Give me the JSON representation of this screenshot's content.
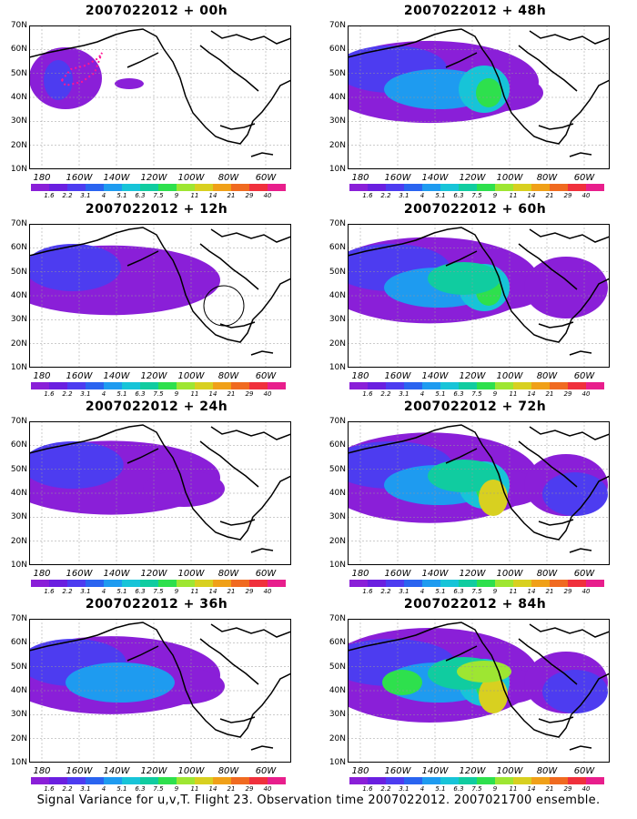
{
  "panels": [
    {
      "title": "2007022012 + 00h",
      "intensity": 0
    },
    {
      "title": "2007022012 + 48h",
      "intensity": 4
    },
    {
      "title": "2007022012 + 12h",
      "intensity": 1
    },
    {
      "title": "2007022012 + 60h",
      "intensity": 5
    },
    {
      "title": "2007022012 + 24h",
      "intensity": 2
    },
    {
      "title": "2007022012 + 72h",
      "intensity": 6
    },
    {
      "title": "2007022012 + 36h",
      "intensity": 3
    },
    {
      "title": "2007022012 + 84h",
      "intensity": 7
    }
  ],
  "lat_labels": [
    "70N",
    "60N",
    "50N",
    "40N",
    "30N",
    "20N",
    "10N"
  ],
  "lon_labels": [
    "180",
    "160W",
    "140W",
    "120W",
    "100W",
    "80W",
    "60W"
  ],
  "colorbar": {
    "labels": [
      "1.6",
      "2.2",
      "3.1",
      "4",
      "5.1",
      "6.3",
      "7.5",
      "9",
      "11",
      "14",
      "21",
      "29",
      "40"
    ],
    "colors": [
      "#8a1fd8",
      "#6a1fe0",
      "#4d3cf0",
      "#2a64f0",
      "#1e9bf0",
      "#17c4d8",
      "#10cca0",
      "#2ee04d",
      "#9ee632",
      "#d8d020",
      "#f0a018",
      "#f06a20",
      "#f0303c",
      "#e81e8c"
    ]
  },
  "caption": "Signal Variance for u,v,T. Flight 23. Observation time 2007022012. 2007021700 ensemble."
}
